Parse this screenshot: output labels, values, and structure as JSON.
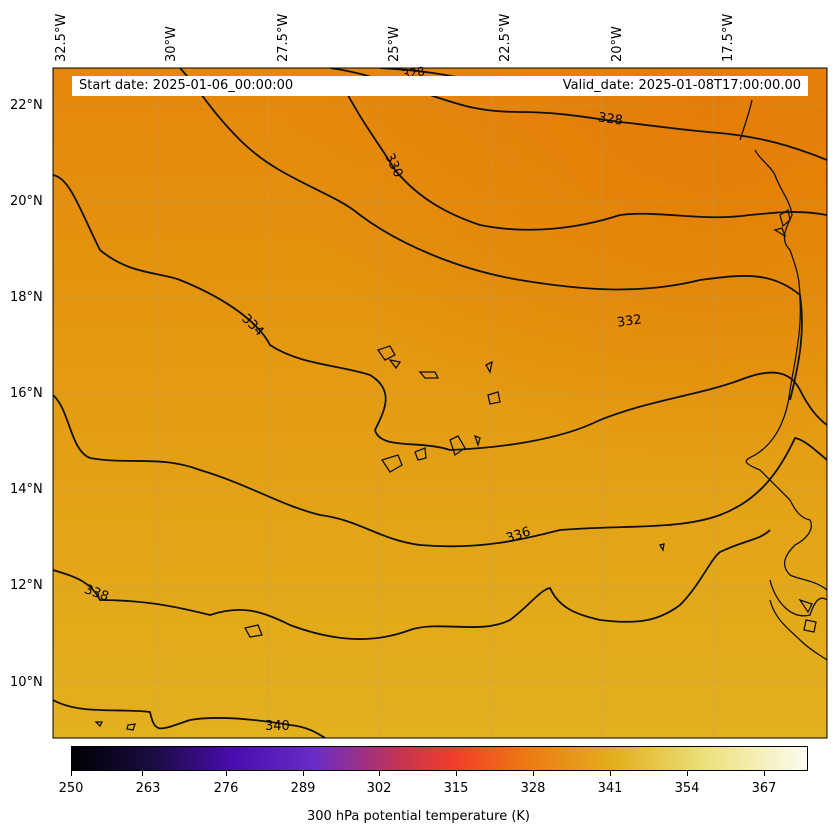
{
  "map": {
    "info": {
      "start_date": "Start date: 2025-01-06_00:00:00",
      "valid_date": "Valid_date: 2025-01-08T17:00:00.00"
    },
    "longitude_labels": [
      "32.5°W",
      "30°W",
      "27.5°W",
      "25°W",
      "22.5°W",
      "20°W",
      "17.5°W"
    ],
    "latitude_labels": [
      "22°N",
      "20°N",
      "18°N",
      "16°N",
      "14°N",
      "12°N",
      "10°N"
    ],
    "contour_labels": [
      "328",
      "328",
      "330",
      "332",
      "334",
      "336",
      "338",
      "340"
    ],
    "colorbar": {
      "title": "300 hPa potential temperature (K)",
      "ticks": [
        "250",
        "263",
        "276",
        "289",
        "302",
        "315",
        "328",
        "341",
        "354",
        "367"
      ],
      "colors": [
        "#000004",
        "#1b0c41",
        "#4a0c6b",
        "#781c6d",
        "#a52c60",
        "#cf4446",
        "#ed6925",
        "#fb9b06",
        "#f7d13d",
        "#fcffa4"
      ]
    },
    "fill_colors": {
      "north": "#e8830a",
      "mid": "#e39a14",
      "south": "#e3ae1c"
    }
  }
}
